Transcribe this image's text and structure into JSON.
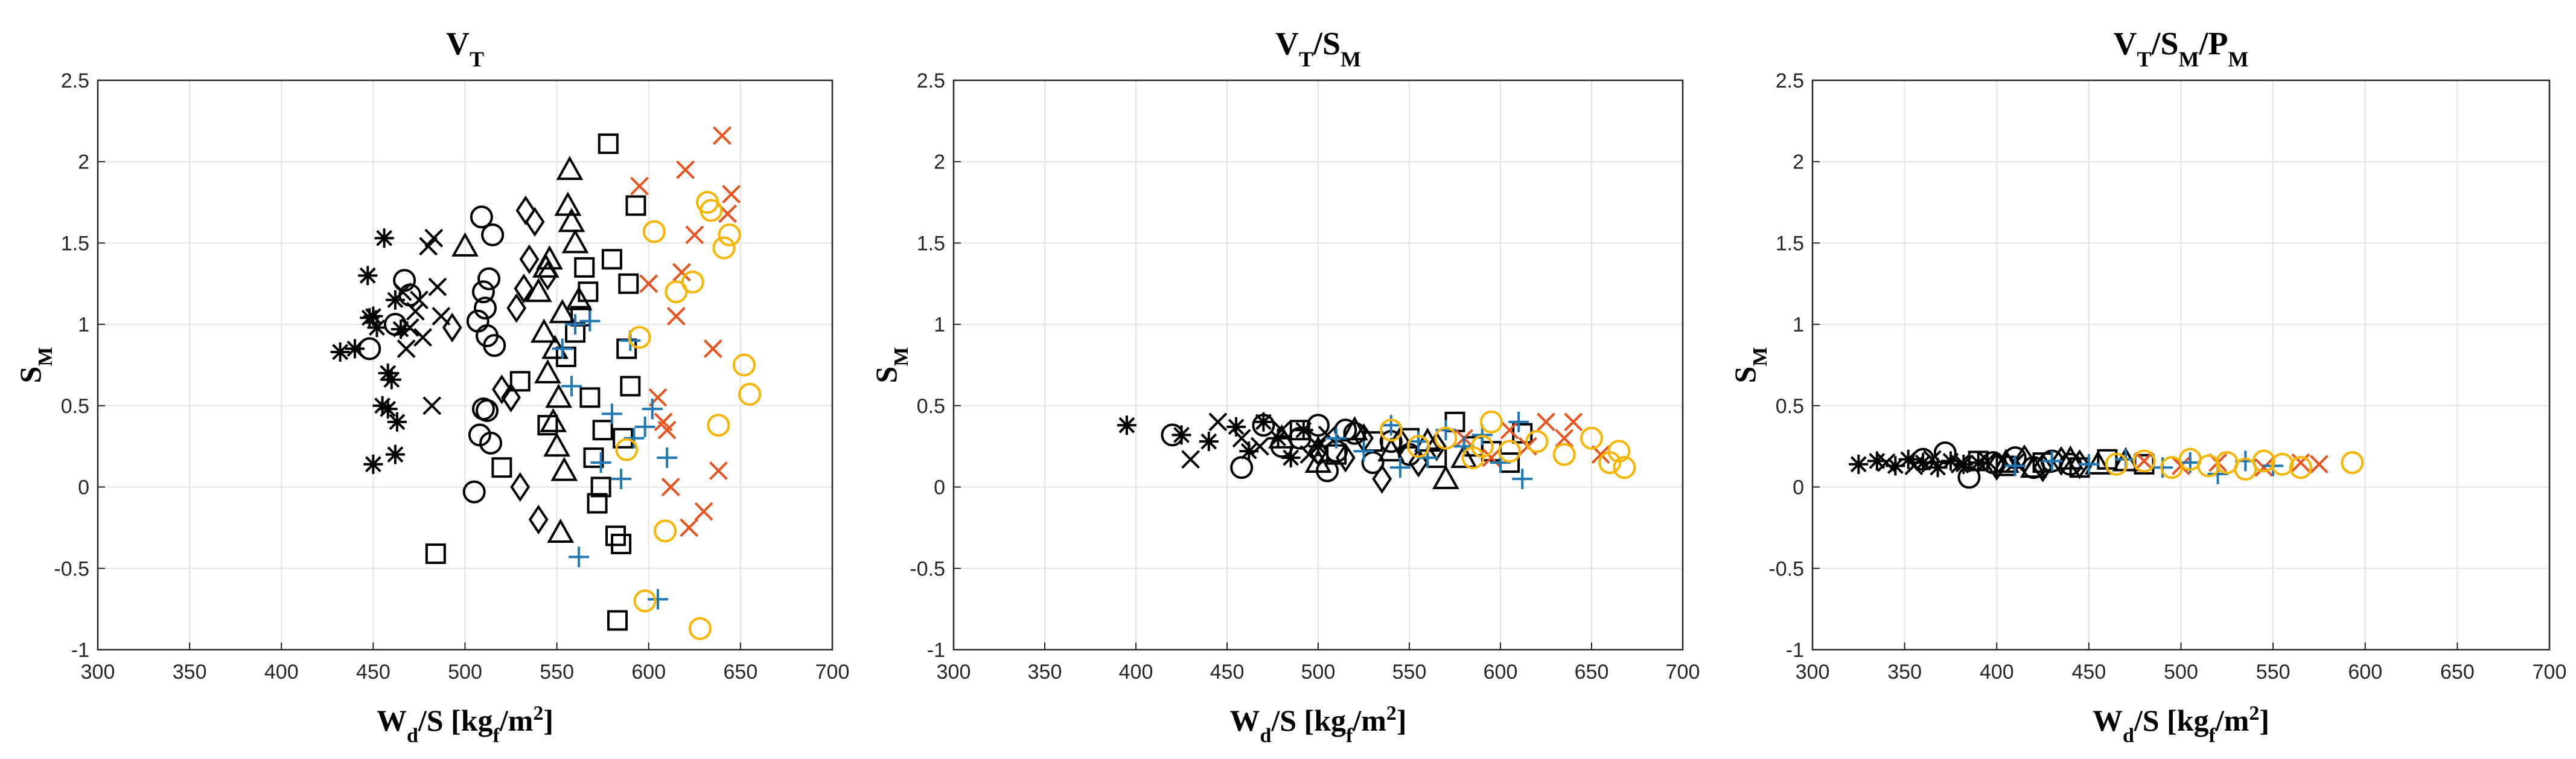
{
  "chart_data": [
    {
      "type": "scatter",
      "title": "V_T",
      "title_main": "V",
      "title_sub": "T",
      "xlabel": "W_d/S [kg_f/m^2]",
      "ylabel": "S_M",
      "xlim": [
        300,
        700
      ],
      "ylim": [
        -1,
        2.5
      ],
      "grid": true,
      "series": [
        {
          "name": "asterisk-black",
          "marker": "asterisk",
          "color": "#000000",
          "x": [
            432,
            440,
            447,
            450,
            452,
            455,
            456,
            458,
            460,
            462,
            463,
            465,
            450,
            458,
            462,
            448
          ],
          "y": [
            0.83,
            0.85,
            1.3,
            1.05,
            0.98,
            0.5,
            1.53,
            0.48,
            0.66,
            0.2,
            0.4,
            0.97,
            0.14,
            0.7,
            1.15,
            1.04
          ]
        },
        {
          "name": "cross-black",
          "marker": "x",
          "color": "#000000",
          "x": [
            466,
            470,
            473,
            477,
            480,
            483,
            485,
            487,
            468,
            475,
            482
          ],
          "y": [
            1.2,
            0.98,
            1.08,
            0.92,
            1.48,
            1.53,
            1.23,
            1.05,
            0.85,
            1.15,
            0.5
          ]
        },
        {
          "name": "circle-black",
          "marker": "circle",
          "color": "#000000",
          "x": [
            448,
            462,
            467,
            470,
            505,
            508,
            510,
            512,
            514,
            515,
            513,
            509,
            511,
            507,
            512,
            516,
            510
          ],
          "y": [
            0.85,
            1.0,
            1.27,
            1.18,
            -0.03,
            0.32,
            0.48,
            0.47,
            0.27,
            1.55,
            1.28,
            1.66,
            1.1,
            1.02,
            0.93,
            0.87,
            1.2
          ]
        },
        {
          "name": "diamond-black",
          "marker": "diamond",
          "color": "#000000",
          "x": [
            493,
            520,
            525,
            530,
            532,
            535,
            538,
            540,
            528,
            545,
            533
          ],
          "y": [
            0.98,
            0.6,
            0.55,
            0.0,
            1.22,
            1.4,
            1.63,
            -0.2,
            1.1,
            1.3,
            1.7
          ]
        },
        {
          "name": "triangle-black",
          "marker": "triangle",
          "color": "#000000",
          "x": [
            500,
            540,
            543,
            545,
            548,
            550,
            552,
            554,
            556,
            558,
            560,
            546,
            553,
            549,
            557,
            551,
            544,
            562
          ],
          "y": [
            1.48,
            1.2,
            0.95,
            0.7,
            0.4,
            0.25,
            -0.28,
            0.1,
            1.73,
            1.63,
            1.5,
            1.4,
            1.07,
            0.85,
            1.95,
            0.55,
            1.35,
            1.15
          ]
        },
        {
          "name": "square-black",
          "marker": "square",
          "color": "#000000",
          "x": [
            484,
            520,
            530,
            545,
            555,
            560,
            563,
            565,
            568,
            570,
            572,
            575,
            578,
            580,
            582,
            585,
            588,
            590,
            593,
            567,
            574,
            583,
            586,
            589
          ],
          "y": [
            -0.41,
            0.12,
            0.65,
            0.38,
            0.8,
            0.95,
            1.05,
            1.35,
            0.55,
            0.18,
            -0.1,
            0.35,
            2.11,
            1.4,
            -0.3,
            -0.35,
            0.85,
            0.62,
            1.73,
            1.2,
            0.0,
            -0.82,
            0.3,
            1.25
          ]
        },
        {
          "name": "cross-orange",
          "marker": "x",
          "color": "#e8531f",
          "x": [
            595,
            600,
            605,
            610,
            615,
            620,
            625,
            630,
            635,
            640,
            643,
            645,
            612,
            622,
            618,
            638,
            608
          ],
          "y": [
            1.85,
            1.25,
            0.55,
            0.35,
            1.05,
            1.95,
            1.55,
            -0.15,
            0.85,
            2.16,
            1.68,
            1.8,
            0.0,
            -0.25,
            1.32,
            0.1,
            0.4
          ]
        },
        {
          "name": "plus-blue",
          "marker": "plus",
          "color": "#1f77b4",
          "x": [
            553,
            558,
            562,
            568,
            574,
            580,
            585,
            592,
            598,
            605,
            610,
            560,
            590,
            602
          ],
          "y": [
            0.85,
            0.62,
            -0.43,
            1.02,
            0.15,
            0.45,
            0.05,
            0.3,
            0.37,
            -0.69,
            0.18,
            1.0,
            0.9,
            0.48
          ]
        },
        {
          "name": "circle-yellow",
          "marker": "circle",
          "color": "#f7b500",
          "x": [
            588,
            595,
            603,
            609,
            615,
            624,
            628,
            634,
            638,
            641,
            644,
            652,
            655,
            598,
            632
          ],
          "y": [
            0.23,
            0.92,
            1.57,
            -0.27,
            1.2,
            1.26,
            -0.87,
            1.7,
            0.38,
            1.47,
            1.55,
            0.75,
            0.57,
            -0.7,
            1.75
          ]
        }
      ]
    },
    {
      "type": "scatter",
      "title": "V_T/S_M",
      "title_main": "V",
      "title_sub": "T",
      "title_sep": "/S",
      "title_sub2": "M",
      "xlabel": "W_d/S [kg_f/m^2]",
      "ylabel": "S_M",
      "xlim": [
        300,
        700
      ],
      "ylim": [
        -1,
        2.5
      ],
      "grid": true,
      "series": [
        {
          "name": "asterisk-black",
          "marker": "asterisk",
          "color": "#000000",
          "x": [
            395,
            425,
            440,
            455,
            462,
            470,
            478,
            485,
            492,
            500
          ],
          "y": [
            0.38,
            0.32,
            0.28,
            0.37,
            0.22,
            0.4,
            0.3,
            0.18,
            0.35,
            0.25
          ]
        },
        {
          "name": "cross-black",
          "marker": "x",
          "color": "#000000",
          "x": [
            430,
            445,
            458,
            468,
            480,
            495,
            505
          ],
          "y": [
            0.17,
            0.4,
            0.3,
            0.25,
            0.35,
            0.2,
            0.32
          ]
        },
        {
          "name": "circle-black",
          "marker": "circle",
          "color": "#000000",
          "x": [
            420,
            458,
            470,
            480,
            490,
            500,
            510,
            520,
            530,
            540,
            550,
            505,
            515
          ],
          "y": [
            0.32,
            0.12,
            0.38,
            0.25,
            0.3,
            0.38,
            0.22,
            0.33,
            0.15,
            0.28,
            0.2,
            0.1,
            0.35
          ]
        },
        {
          "name": "diamond-black",
          "marker": "diamond",
          "color": "#000000",
          "x": [
            500,
            515,
            525,
            535,
            545,
            555,
            565
          ],
          "y": [
            0.22,
            0.18,
            0.3,
            0.05,
            0.28,
            0.15,
            0.25
          ]
        },
        {
          "name": "triangle-black",
          "marker": "triangle",
          "color": "#000000",
          "x": [
            480,
            500,
            520,
            540,
            560,
            570,
            580
          ],
          "y": [
            0.3,
            0.15,
            0.35,
            0.22,
            0.28,
            0.05,
            0.18
          ]
        },
        {
          "name": "square-black",
          "marker": "square",
          "color": "#000000",
          "x": [
            490,
            510,
            530,
            550,
            565,
            575,
            585,
            595,
            605,
            612
          ],
          "y": [
            0.35,
            0.2,
            0.28,
            0.3,
            0.18,
            0.4,
            0.25,
            0.22,
            0.15,
            0.33
          ]
        },
        {
          "name": "cross-orange",
          "marker": "x",
          "color": "#e8531f",
          "x": [
            580,
            595,
            605,
            615,
            625,
            635,
            640,
            655
          ],
          "y": [
            0.3,
            0.18,
            0.35,
            0.25,
            0.4,
            0.3,
            0.4,
            0.2
          ]
        },
        {
          "name": "plus-blue",
          "marker": "plus",
          "color": "#1f77b4",
          "x": [
            510,
            525,
            540,
            555,
            560,
            570,
            580,
            590,
            600,
            610,
            612,
            545
          ],
          "y": [
            0.3,
            0.22,
            0.38,
            0.28,
            0.18,
            0.35,
            0.25,
            0.32,
            0.15,
            0.4,
            0.05,
            0.12
          ]
        },
        {
          "name": "circle-yellow",
          "marker": "circle",
          "color": "#f7b500",
          "x": [
            540,
            555,
            570,
            585,
            595,
            605,
            620,
            635,
            650,
            660,
            665,
            668,
            590
          ],
          "y": [
            0.35,
            0.25,
            0.3,
            0.18,
            0.4,
            0.22,
            0.28,
            0.2,
            0.3,
            0.15,
            0.22,
            0.12,
            0.25
          ]
        }
      ]
    },
    {
      "type": "scatter",
      "title": "V_T/S_M/P_M",
      "title_main": "V",
      "title_sub": "T",
      "title_sep": "/S",
      "title_sub2": "M",
      "title_sep2": "/P",
      "title_sub3": "M",
      "xlabel": "W_d/S [kg_f/m^2]",
      "ylabel": "S_M",
      "xlim": [
        300,
        700
      ],
      "ylim": [
        -1,
        2.5
      ],
      "grid": true,
      "series": [
        {
          "name": "asterisk-black",
          "marker": "asterisk",
          "color": "#000000",
          "x": [
            325,
            335,
            345,
            352,
            360,
            368,
            375,
            382,
            390
          ],
          "y": [
            0.14,
            0.16,
            0.13,
            0.17,
            0.15,
            0.12,
            0.16,
            0.14,
            0.15
          ]
        },
        {
          "name": "cross-black",
          "marker": "x",
          "color": "#000000",
          "x": [
            340,
            355,
            365,
            380,
            395,
            410
          ],
          "y": [
            0.15,
            0.13,
            0.17,
            0.14,
            0.16,
            0.15
          ]
        },
        {
          "name": "circle-black",
          "marker": "circle",
          "color": "#000000",
          "x": [
            360,
            372,
            385,
            398,
            410,
            420,
            430,
            440
          ],
          "y": [
            0.17,
            0.21,
            0.06,
            0.15,
            0.18,
            0.12,
            0.16,
            0.14
          ]
        },
        {
          "name": "diamond-black",
          "marker": "diamond",
          "color": "#000000",
          "x": [
            400,
            415,
            425,
            435,
            445
          ],
          "y": [
            0.13,
            0.17,
            0.12,
            0.16,
            0.14
          ]
        },
        {
          "name": "triangle-black",
          "marker": "triangle",
          "color": "#000000",
          "x": [
            405,
            420,
            440,
            455,
            470
          ],
          "y": [
            0.15,
            0.12,
            0.17,
            0.14,
            0.16
          ]
        },
        {
          "name": "square-black",
          "marker": "square",
          "color": "#000000",
          "x": [
            390,
            405,
            425,
            445,
            460,
            480
          ],
          "y": [
            0.16,
            0.13,
            0.15,
            0.12,
            0.17,
            0.14
          ]
        },
        {
          "name": "cross-orange",
          "marker": "x",
          "color": "#e8531f",
          "x": [
            480,
            500,
            520,
            545,
            565,
            575
          ],
          "y": [
            0.16,
            0.13,
            0.15,
            0.12,
            0.15,
            0.14
          ]
        },
        {
          "name": "plus-blue",
          "marker": "plus",
          "color": "#1f77b4",
          "x": [
            410,
            430,
            450,
            470,
            490,
            505,
            520,
            535,
            550
          ],
          "y": [
            0.13,
            0.16,
            0.14,
            0.17,
            0.12,
            0.15,
            0.08,
            0.16,
            0.13
          ]
        },
        {
          "name": "circle-yellow",
          "marker": "circle",
          "color": "#f7b500",
          "x": [
            465,
            480,
            495,
            505,
            515,
            525,
            535,
            545,
            555,
            565,
            593
          ],
          "y": [
            0.14,
            0.16,
            0.12,
            0.17,
            0.13,
            0.15,
            0.11,
            0.16,
            0.14,
            0.12,
            0.15
          ]
        }
      ]
    }
  ]
}
